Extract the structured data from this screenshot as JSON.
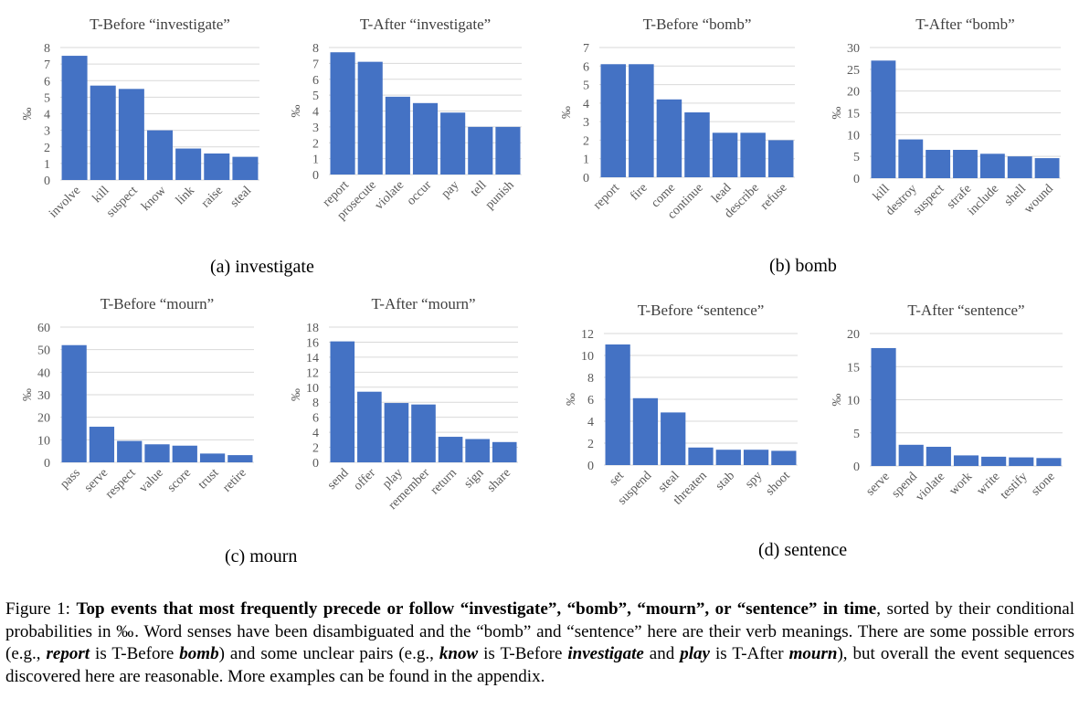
{
  "colors": {
    "bar": "#4472C4",
    "grid": "#d9d9d9",
    "axis_text": "#595959",
    "title": "#404040"
  },
  "chart_data": [
    {
      "type": "bar",
      "title": "T-Before “investigate”",
      "ylabel": "‰",
      "categories": [
        "involve",
        "kill",
        "suspect",
        "know",
        "link",
        "raise",
        "steal"
      ],
      "values": [
        7.5,
        5.7,
        5.5,
        3.0,
        1.9,
        1.6,
        1.4
      ],
      "ylim": [
        0,
        8
      ],
      "yticks": [
        "0",
        "1",
        "2",
        "3",
        "4",
        "5",
        "6",
        "7",
        "8"
      ],
      "grid": true,
      "legend": "none"
    },
    {
      "type": "bar",
      "title": "T-After “investigate”",
      "ylabel": "‰",
      "categories": [
        "report",
        "prosecute",
        "violate",
        "occur",
        "pay",
        "tell",
        "punish"
      ],
      "values": [
        7.7,
        7.1,
        4.9,
        4.5,
        3.9,
        3.0,
        3.0
      ],
      "ylim": [
        0,
        8
      ],
      "yticks": [
        "0",
        "1",
        "2",
        "3",
        "4",
        "5",
        "6",
        "7",
        "8"
      ],
      "grid": true,
      "legend": "none"
    },
    {
      "type": "bar",
      "title": "T-Before “bomb”",
      "ylabel": "‰",
      "categories": [
        "report",
        "fire",
        "come",
        "continue",
        "lead",
        "describe",
        "refuse"
      ],
      "values": [
        6.1,
        6.1,
        4.2,
        3.5,
        2.4,
        2.4,
        2.0
      ],
      "ylim": [
        0,
        7
      ],
      "yticks": [
        "0",
        "1",
        "2",
        "3",
        "4",
        "5",
        "6",
        "7"
      ],
      "grid": true,
      "legend": "none"
    },
    {
      "type": "bar",
      "title": "T-After “bomb”",
      "ylabel": "‰",
      "categories": [
        "kill",
        "destroy",
        "suspect",
        "strafe",
        "include",
        "shell",
        "wound"
      ],
      "values": [
        27.0,
        8.9,
        6.5,
        6.5,
        5.6,
        5.0,
        4.6
      ],
      "ylim": [
        0,
        30
      ],
      "yticks": [
        "0",
        "5",
        "10",
        "15",
        "20",
        "25",
        "30"
      ],
      "grid": true,
      "legend": "none"
    },
    {
      "type": "bar",
      "title": "T-Before “mourn”",
      "ylabel": "‰",
      "categories": [
        "pass",
        "serve",
        "respect",
        "value",
        "score",
        "trust",
        "retire"
      ],
      "values": [
        52.0,
        15.8,
        9.5,
        8.0,
        7.4,
        3.9,
        3.2
      ],
      "ylim": [
        0,
        60
      ],
      "yticks": [
        "0",
        "10",
        "20",
        "30",
        "40",
        "50",
        "60"
      ],
      "grid": true,
      "legend": "none"
    },
    {
      "type": "bar",
      "title": "T-After “mourn”",
      "ylabel": "‰",
      "categories": [
        "send",
        "offer",
        "play",
        "remember",
        "return",
        "sign",
        "share"
      ],
      "values": [
        16.1,
        9.4,
        7.9,
        7.7,
        3.4,
        3.1,
        2.7
      ],
      "ylim": [
        0,
        18
      ],
      "yticks": [
        "0",
        "2",
        "4",
        "6",
        "8",
        "10",
        "12",
        "14",
        "16",
        "18"
      ],
      "grid": true,
      "legend": "none"
    },
    {
      "type": "bar",
      "title": "T-Before “sentence”",
      "ylabel": "‰",
      "categories": [
        "set",
        "suspend",
        "steal",
        "threaten",
        "stab",
        "spy",
        "shoot"
      ],
      "values": [
        11.0,
        6.1,
        4.8,
        1.6,
        1.4,
        1.4,
        1.3
      ],
      "ylim": [
        0,
        12
      ],
      "yticks": [
        "0",
        "2",
        "4",
        "6",
        "8",
        "10",
        "12"
      ],
      "grid": true,
      "legend": "none"
    },
    {
      "type": "bar",
      "title": "T-After “sentence”",
      "ylabel": "‰",
      "categories": [
        "serve",
        "spend",
        "violate",
        "work",
        "write",
        "testify",
        "stone"
      ],
      "values": [
        17.8,
        3.2,
        2.9,
        1.6,
        1.4,
        1.3,
        1.2
      ],
      "ylim": [
        0,
        20
      ],
      "yticks": [
        "0",
        "5",
        "10",
        "15",
        "20"
      ],
      "grid": true,
      "legend": "none"
    }
  ],
  "subcaptions": [
    "(a) investigate",
    "(b) bomb",
    "(c) mourn",
    "(d) sentence"
  ],
  "caption": {
    "label": "Figure 1:",
    "bold": "Top events that most frequently precede or follow “investigate”, “bomb”, “mourn”, or “sentence” in time",
    "p1": ", sorted by their conditional probabilities in ‰. Word senses have been disambiguated and the “bomb” and “sentence” here are their verb meanings. There are some possible errors (e.g., ",
    "e1": "report",
    "p2": " is T-Before ",
    "e2": "bomb",
    "p3": ") and some unclear pairs (e.g., ",
    "e3": "know",
    "p4": " is T-Before ",
    "e4": "investigate",
    "p5": " and ",
    "e5": "play",
    "p6": " is T-After ",
    "e6": "mourn",
    "p7": "), but overall the event sequences discovered here are reasonable. More examples can be found in the appendix."
  }
}
